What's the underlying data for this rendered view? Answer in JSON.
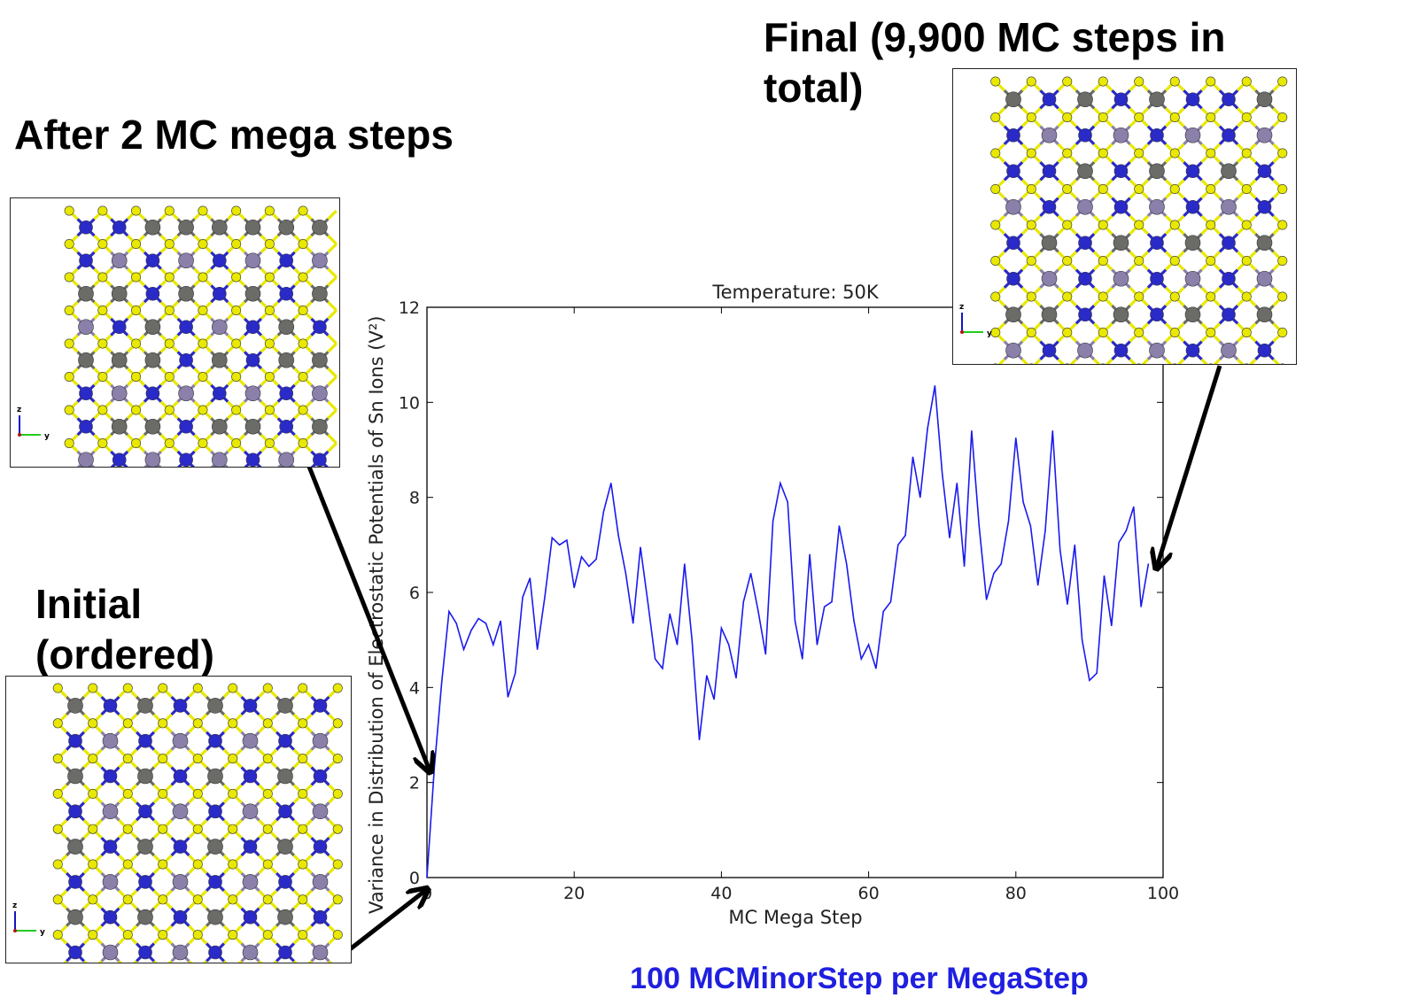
{
  "labels": {
    "final": "Final (9,900 MC steps in total)",
    "after2": "After 2 MC mega steps",
    "initial": "Initial (ordered)",
    "note": "100 MCMinorStep per MegaStep"
  },
  "colors": {
    "line": "#1a1aee",
    "note": "#1f1fe0",
    "sulfur": "#e8e800",
    "sn_blue": "#2a2ac8",
    "grey": "#6b6b68",
    "lavender": "#8a80aa"
  },
  "axis_glyphs": {
    "z": "z",
    "y": "y"
  },
  "chart_data": {
    "type": "line",
    "title": "Temperature: 50K",
    "xlabel": "MC Mega Step",
    "ylabel": "Variance in Distribution of Electrostatic Potentials of Sn Ions (V²)",
    "xlim": [
      0,
      100
    ],
    "ylim": [
      0,
      12
    ],
    "xticks": [
      0,
      20,
      40,
      60,
      80,
      100
    ],
    "yticks": [
      0,
      2,
      4,
      6,
      8,
      10,
      12
    ],
    "grid": false,
    "series": [
      {
        "x": [
          0,
          1,
          2,
          3,
          4,
          5,
          6,
          7,
          8,
          9,
          10,
          11,
          12,
          13,
          14,
          15,
          16,
          17,
          18,
          19,
          20,
          21,
          22,
          23,
          24,
          25,
          26,
          27,
          28,
          29,
          30,
          31,
          32,
          33,
          34,
          35,
          36,
          37,
          38,
          39,
          40,
          41,
          42,
          43,
          44,
          45,
          46,
          47,
          48,
          49,
          50,
          51,
          52,
          53,
          54,
          55,
          56,
          57,
          58,
          59,
          60,
          61,
          62,
          63,
          64,
          65,
          66,
          67,
          68,
          69,
          70,
          71,
          72,
          73,
          74,
          75,
          76,
          77,
          78,
          79,
          80,
          81,
          82,
          83,
          84,
          85,
          86,
          87,
          88,
          89,
          90,
          91,
          92,
          93,
          94,
          95,
          96,
          97,
          98
        ],
        "y": [
          0,
          2.3,
          4.1,
          5.6,
          5.35,
          4.8,
          5.2,
          5.45,
          5.35,
          4.9,
          5.4,
          3.8,
          4.3,
          5.9,
          6.3,
          4.8,
          5.9,
          7.15,
          7.0,
          7.1,
          6.1,
          6.75,
          6.55,
          6.7,
          7.7,
          8.3,
          7.2,
          6.4,
          5.35,
          6.95,
          5.8,
          4.6,
          4.4,
          5.55,
          4.9,
          6.6,
          5.0,
          2.9,
          4.25,
          3.75,
          5.25,
          4.9,
          4.2,
          5.8,
          6.4,
          5.6,
          4.7,
          7.5,
          8.3,
          7.9,
          5.4,
          4.6,
          6.8,
          4.9,
          5.7,
          5.8,
          7.4,
          6.6,
          5.4,
          4.6,
          4.9,
          4.4,
          5.6,
          5.8,
          7.0,
          7.2,
          8.85,
          8.0,
          9.45,
          10.35,
          8.5,
          7.15,
          8.3,
          6.55,
          9.4,
          7.4,
          5.85,
          6.4,
          6.6,
          7.5,
          9.25,
          7.9,
          7.4,
          6.15,
          7.3,
          9.4,
          6.9,
          5.75,
          7.0,
          5.0,
          4.15,
          4.3,
          6.35,
          5.3,
          7.05,
          7.3,
          7.8,
          5.7,
          6.6
        ]
      }
    ]
  }
}
